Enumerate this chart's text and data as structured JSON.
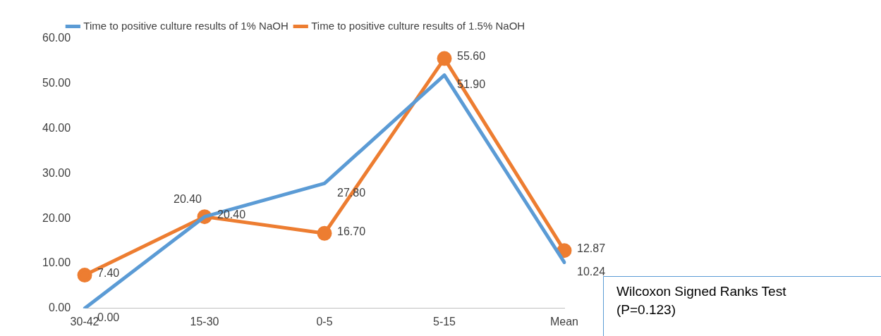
{
  "chart_data": {
    "type": "line",
    "categories": [
      "30-42",
      "15-30",
      "0-5",
      "5-15",
      "Mean"
    ],
    "series": [
      {
        "name": "Time to positive culture results of 1% NaOH",
        "color": "#5b9bd5",
        "values": [
          0,
          20.4,
          27.8,
          51.9,
          10.24
        ],
        "value_labels": [
          "0.00",
          "20.40",
          "27.80",
          "51.90",
          "10.24"
        ],
        "marker": "none"
      },
      {
        "name": "Time to positive culture results of 1.5% NaOH",
        "color": "#ed7d31",
        "values": [
          7.4,
          20.4,
          16.7,
          55.6,
          12.87
        ],
        "value_labels": [
          "7.40",
          "20.40",
          "16.70",
          "55.60",
          "12.87"
        ],
        "marker": "circle"
      }
    ],
    "ylim": [
      0,
      60
    ],
    "yticks": [
      {
        "value": 0,
        "label": "0.00"
      },
      {
        "value": 10,
        "label": "10.00"
      },
      {
        "value": 20,
        "label": "20.00"
      },
      {
        "value": 30,
        "label": "30.00"
      },
      {
        "value": 40,
        "label": "40.00"
      },
      {
        "value": 50,
        "label": "50.00"
      },
      {
        "value": 60,
        "label": "60.00"
      }
    ],
    "grid": false,
    "legend": "top",
    "line_style": "solid",
    "annotations": [
      "Wilcoxon Signed Ranks Test\n(P=0.123)"
    ]
  }
}
